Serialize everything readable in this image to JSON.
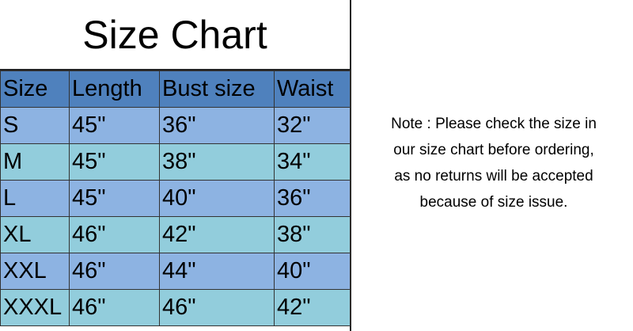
{
  "title": "Size Chart",
  "headers": [
    "Size",
    "Length",
    "Bust size",
    "Waist"
  ],
  "rows": [
    [
      "S",
      "45\"",
      "36\"",
      "32\""
    ],
    [
      "M",
      "45\"",
      "38\"",
      "34\""
    ],
    [
      "L",
      "45\"",
      "40\"",
      "36\""
    ],
    [
      "XL",
      "46\"",
      "42\"",
      "38\""
    ],
    [
      "XXL",
      "46\"",
      "44\"",
      "40\""
    ],
    [
      "XXXL",
      "46\"",
      "46\"",
      "42\""
    ]
  ],
  "note": [
    "Note : Please check the size in",
    "our size chart before ordering,",
    "as no returns will be accepted",
    "because of size issue."
  ],
  "colors": {
    "header": "#4f81bd",
    "row_odd": "#8db3e2",
    "row_even": "#92cddc"
  }
}
